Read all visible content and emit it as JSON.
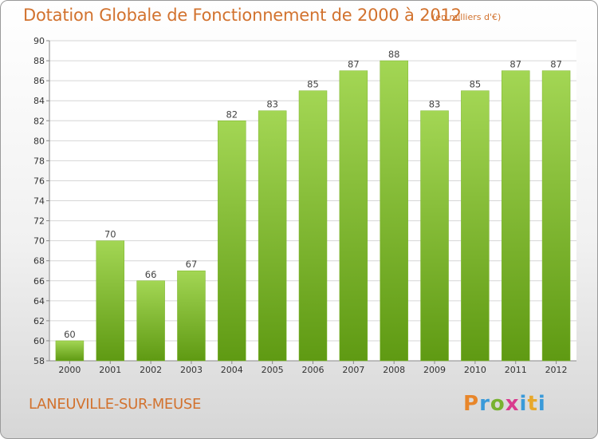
{
  "header": {
    "title": "Dotation Globale de Fonctionnement de 2000 à 2012",
    "subtitle": "(en milliers d'€)"
  },
  "footer": {
    "commune": "LANEUVILLE-SUR-MEUSE",
    "logo_text": "Proxiti"
  },
  "colors": {
    "title": "#d2722e",
    "bar_light": "#9fd24f",
    "bar_dark": "#5f9a13",
    "grid": "#d6d6d6"
  },
  "chart_data": {
    "type": "bar",
    "title": "Dotation Globale de Fonctionnement de 2000 à 2012",
    "subtitle": "(en milliers d'€)",
    "categories": [
      "2000",
      "2001",
      "2002",
      "2003",
      "2004",
      "2005",
      "2006",
      "2007",
      "2008",
      "2009",
      "2010",
      "2011",
      "2012"
    ],
    "values": [
      60,
      70,
      66,
      67,
      82,
      83,
      85,
      87,
      88,
      83,
      85,
      87,
      87
    ],
    "value_labels": [
      "60",
      "70",
      "66",
      "67",
      "82",
      "83",
      "85",
      "87",
      "88",
      "83",
      "85",
      "87",
      "87"
    ],
    "y_ticks": [
      "58",
      "60",
      "62",
      "64",
      "66",
      "68",
      "70",
      "72",
      "74",
      "76",
      "78",
      "80",
      "82",
      "84",
      "86",
      "88",
      "90"
    ],
    "ylim": [
      58,
      90
    ],
    "grid": true,
    "xlabel": "",
    "ylabel": ""
  }
}
